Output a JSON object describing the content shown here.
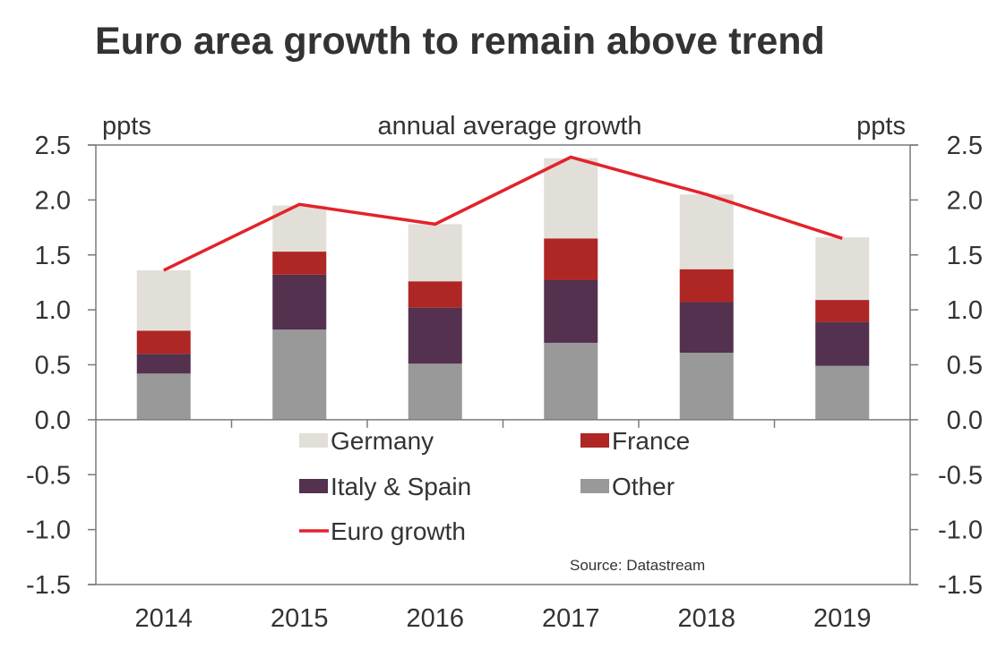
{
  "chart_data": {
    "type": "bar",
    "stacked": true,
    "title": "Euro area growth to remain above trend",
    "subtitle": "annual average growth",
    "ylabel_left": "ppts",
    "ylabel_right": "ppts",
    "xlabel": "",
    "categories": [
      "2014",
      "2015",
      "2016",
      "2017",
      "2018",
      "2019"
    ],
    "ylim": [
      -1.5,
      2.5
    ],
    "yticks": [
      2.5,
      2.0,
      1.5,
      1.0,
      0.5,
      0.0,
      -0.5,
      -1.0,
      -1.5
    ],
    "ytick_labels": [
      "2.5",
      "2.0",
      "1.5",
      "1.0",
      "0.5",
      "0.0",
      "-0.5",
      "-1.0",
      "-1.5"
    ],
    "grid": false,
    "series": [
      {
        "name": "Other",
        "kind": "bar",
        "color": "#999999",
        "values": [
          0.42,
          0.82,
          0.51,
          0.7,
          0.61,
          0.49
        ]
      },
      {
        "name": "Italy & Spain",
        "kind": "bar",
        "color": "#53314f",
        "values": [
          0.18,
          0.5,
          0.51,
          0.57,
          0.46,
          0.4
        ]
      },
      {
        "name": "France",
        "kind": "bar",
        "color": "#ae2724",
        "values": [
          0.21,
          0.21,
          0.24,
          0.38,
          0.3,
          0.2
        ]
      },
      {
        "name": "Germany",
        "kind": "bar",
        "color": "#e2dfd9",
        "values": [
          0.55,
          0.42,
          0.52,
          0.73,
          0.68,
          0.57
        ]
      },
      {
        "name": "Euro growth",
        "kind": "line",
        "color": "#e3222b",
        "values": [
          1.36,
          1.96,
          1.78,
          2.39,
          2.05,
          1.65
        ]
      }
    ],
    "legend": {
      "placement": "inside-bottom-center",
      "entries": [
        {
          "label": "Germany",
          "series": "Germany",
          "swatch": "box"
        },
        {
          "label": "France",
          "series": "France",
          "swatch": "box"
        },
        {
          "label": "Italy & Spain",
          "series": "Italy & Spain",
          "swatch": "box"
        },
        {
          "label": "Other",
          "series": "Other",
          "swatch": "box"
        },
        {
          "label": "Euro growth",
          "series": "Euro growth",
          "swatch": "line"
        }
      ]
    },
    "source": "Source: Datastream"
  }
}
